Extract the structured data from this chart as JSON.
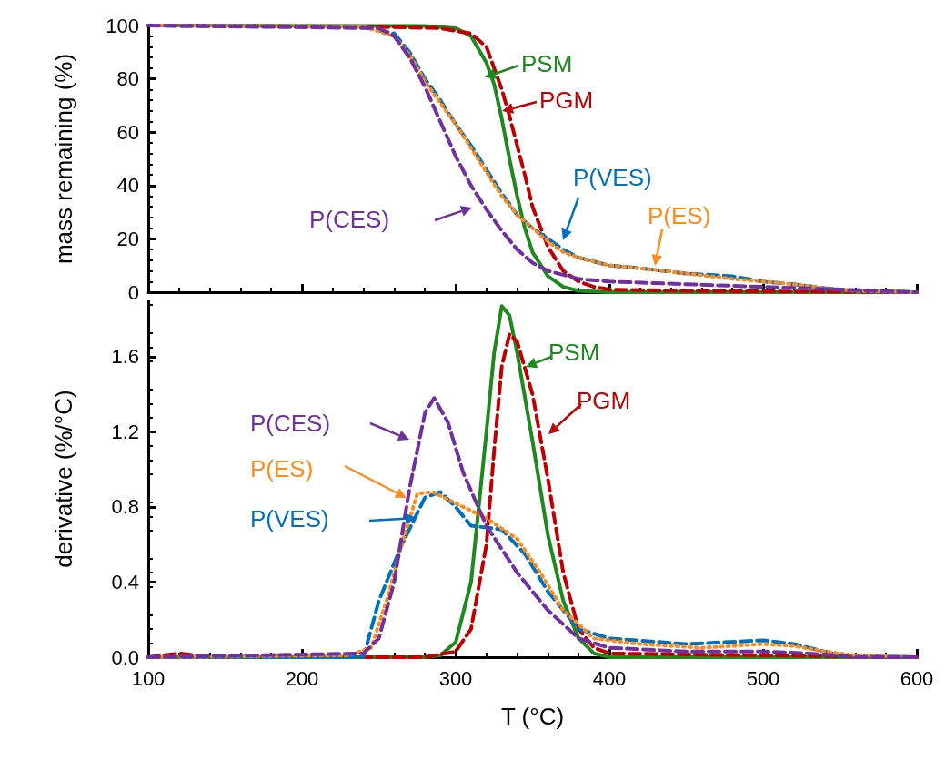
{
  "chart_data": [
    {
      "type": "line",
      "ylabel": "mass remaining (%)",
      "xlim": [
        100,
        600
      ],
      "xticks": [
        100,
        200,
        300,
        400,
        500,
        600
      ],
      "ylim": [
        0,
        100
      ],
      "yticks": [
        0,
        20,
        40,
        60,
        80,
        100
      ],
      "tick_labels": "y",
      "grid": false,
      "legend": "right",
      "marker": "none",
      "series": [
        {
          "name": "PSM",
          "color": "#1e8a1e",
          "line_style": "solid",
          "x": [
            100,
            280,
            300,
            310,
            320,
            325,
            330,
            335,
            340,
            345,
            350,
            360,
            370,
            380,
            400,
            600
          ],
          "values": [
            100,
            99.8,
            99,
            96,
            86,
            78,
            65,
            50,
            36,
            24,
            15,
            6,
            2,
            0.5,
            0,
            0
          ]
        },
        {
          "name": "PGM",
          "color": "#c00000",
          "line_style": "dashed",
          "x": [
            100,
            250,
            290,
            310,
            320,
            330,
            335,
            340,
            345,
            350,
            360,
            370,
            380,
            390,
            400,
            450,
            600
          ],
          "values": [
            100,
            99.5,
            99,
            97,
            92,
            76,
            66,
            55,
            44,
            32,
            17,
            8,
            4,
            2,
            1,
            0.5,
            0
          ]
        },
        {
          "name": "P(VES)",
          "color": "#0070c0",
          "line_style": "dashed",
          "x": [
            100,
            240,
            260,
            270,
            280,
            290,
            300,
            310,
            320,
            330,
            340,
            350,
            360,
            370,
            380,
            400,
            420,
            450,
            480,
            500,
            520,
            540,
            560,
            600
          ],
          "values": [
            100,
            99.5,
            97,
            90,
            80,
            72,
            63,
            55,
            46,
            37,
            29,
            24,
            20,
            16,
            13,
            10,
            9,
            7,
            6,
            4,
            3,
            1.5,
            0.5,
            0
          ]
        },
        {
          "name": "P(ES)",
          "color": "#ff8c1a",
          "line_style": "dotted",
          "x": [
            100,
            240,
            260,
            270,
            280,
            290,
            300,
            310,
            320,
            330,
            340,
            350,
            360,
            370,
            380,
            400,
            420,
            450,
            480,
            500,
            520,
            540,
            560,
            600
          ],
          "values": [
            100,
            99.5,
            96,
            89,
            79,
            71,
            63,
            54,
            45,
            36,
            29,
            24,
            19,
            15,
            13,
            10,
            9,
            7,
            5,
            4,
            3,
            1.5,
            0.5,
            0
          ]
        },
        {
          "name": "P(CES)",
          "color": "#7030a0",
          "line_style": "dashed",
          "x": [
            100,
            250,
            260,
            270,
            280,
            290,
            300,
            310,
            320,
            330,
            340,
            350,
            360,
            380,
            400,
            450,
            500,
            550,
            600
          ],
          "values": [
            100,
            99,
            96,
            88,
            77,
            64,
            51,
            40,
            31,
            23,
            16,
            11,
            8,
            5,
            4,
            3,
            2,
            1,
            0
          ]
        }
      ]
    },
    {
      "type": "line",
      "xlabel": "T (°C)",
      "ylabel": "derivative (%/°C)",
      "xlim": [
        100,
        600
      ],
      "xticks": [
        100,
        200,
        300,
        400,
        500,
        600
      ],
      "ylim": [
        0,
        1.9
      ],
      "yticks": [
        {
          "value": 0,
          "label": "0.0"
        },
        0.4,
        0.8,
        1.2,
        1.6
      ],
      "grid": false,
      "legend": "left",
      "marker": "none",
      "series": [
        {
          "name": "PSM",
          "color": "#1e8a1e",
          "line_style": "solid",
          "x": [
            100,
            280,
            290,
            300,
            310,
            320,
            325,
            330,
            335,
            340,
            350,
            360,
            370,
            380,
            390,
            400,
            600
          ],
          "values": [
            0,
            0,
            0.01,
            0.08,
            0.4,
            1.2,
            1.62,
            1.87,
            1.82,
            1.62,
            1.15,
            0.65,
            0.3,
            0.1,
            0.02,
            0,
            0
          ]
        },
        {
          "name": "PGM",
          "color": "#c00000",
          "line_style": "dashed",
          "x": [
            100,
            120,
            140,
            280,
            300,
            310,
            320,
            325,
            330,
            335,
            340,
            350,
            360,
            370,
            380,
            390,
            400,
            600
          ],
          "values": [
            0,
            0.02,
            0,
            0,
            0.03,
            0.15,
            0.6,
            1.1,
            1.55,
            1.72,
            1.68,
            1.4,
            0.95,
            0.45,
            0.15,
            0.05,
            0.02,
            0
          ]
        },
        {
          "name": "P(VES)",
          "color": "#0070c0",
          "line_style": "dashed",
          "x": [
            100,
            240,
            250,
            265,
            280,
            290,
            300,
            310,
            330,
            345,
            360,
            380,
            400,
            450,
            500,
            520,
            550,
            600
          ],
          "values": [
            0,
            0,
            0.3,
            0.6,
            0.85,
            0.88,
            0.8,
            0.7,
            0.68,
            0.55,
            0.35,
            0.15,
            0.1,
            0.07,
            0.09,
            0.07,
            0.01,
            0
          ]
        },
        {
          "name": "P(ES)",
          "color": "#ff8c1a",
          "line_style": "dotted",
          "x": [
            100,
            230,
            245,
            255,
            265,
            275,
            285,
            300,
            320,
            340,
            355,
            370,
            390,
            420,
            460,
            500,
            520,
            540,
            560,
            600
          ],
          "values": [
            0,
            0.01,
            0.05,
            0.3,
            0.6,
            0.87,
            0.88,
            0.82,
            0.74,
            0.63,
            0.45,
            0.25,
            0.1,
            0.07,
            0.05,
            0.07,
            0.06,
            0.03,
            0.01,
            0
          ]
        },
        {
          "name": "P(CES)",
          "color": "#7030a0",
          "line_style": "dashed",
          "x": [
            100,
            240,
            250,
            260,
            270,
            280,
            286,
            295,
            305,
            320,
            340,
            360,
            380,
            400,
            450,
            500,
            530,
            560,
            600
          ],
          "values": [
            0,
            0.02,
            0.1,
            0.4,
            0.9,
            1.3,
            1.38,
            1.25,
            0.98,
            0.7,
            0.45,
            0.25,
            0.1,
            0.05,
            0.03,
            0.03,
            0.02,
            0,
            0
          ]
        }
      ]
    }
  ]
}
